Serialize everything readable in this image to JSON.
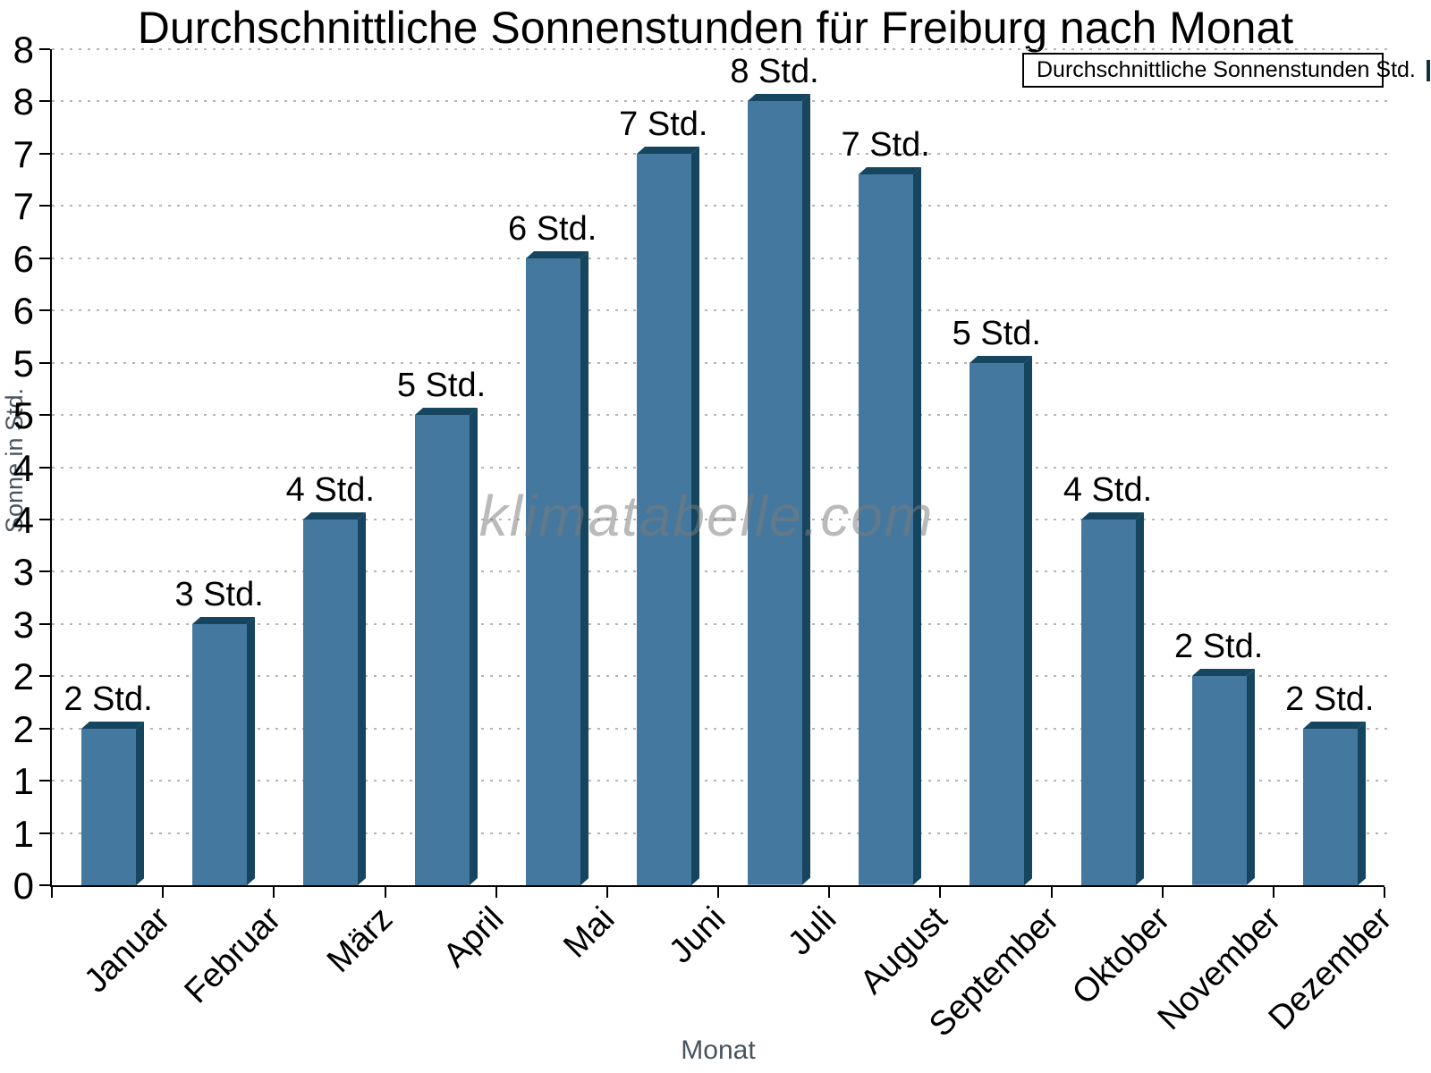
{
  "title": "Durchschnittliche Sonnenstunden für Freiburg nach Monat",
  "watermark": "klimatabelle.com",
  "legend": {
    "label": "Durchschnittliche Sonnenstunden Std."
  },
  "axes": {
    "x_title": "Monat",
    "y_title": "Sonne in Std."
  },
  "colors": {
    "bar_front": "#44789e",
    "bar_side": "#16455f",
    "grid": "#b5b5b5",
    "axis": "#000000",
    "axis_titles": "#49535e",
    "watermark_gray": "#7a7a7a"
  },
  "chart_data": {
    "type": "bar",
    "title": "Durchschnittliche Sonnenstunden für Freiburg nach Monat",
    "xlabel": "Monat",
    "ylabel": "Sonne in Std.",
    "categories": [
      "Januar",
      "Februar",
      "März",
      "April",
      "Mai",
      "Juni",
      "Juli",
      "August",
      "September",
      "Oktober",
      "November",
      "Dezember"
    ],
    "values": [
      1.5,
      2.5,
      3.5,
      4.5,
      6.0,
      7.0,
      7.5,
      6.8,
      5.0,
      3.5,
      2.0,
      1.5
    ],
    "bar_labels": [
      "2 Std.",
      "3 Std.",
      "4 Std.",
      "5 Std.",
      "6 Std.",
      "7 Std.",
      "8 Std.",
      "7 Std.",
      "5 Std.",
      "4 Std.",
      "2 Std.",
      "2 Std."
    ],
    "series_name": "Durchschnittliche Sonnenstunden Std.",
    "ylim": [
      0,
      8
    ],
    "y_tick_step": 0.5,
    "y_tick_labels_bottom_to_top": [
      "0",
      "1",
      "1",
      "2",
      "2",
      "3",
      "3",
      "4",
      "4",
      "5",
      "5",
      "6",
      "6",
      "7",
      "7",
      "8",
      "8"
    ],
    "grid": true,
    "legend_position": "top-right"
  }
}
